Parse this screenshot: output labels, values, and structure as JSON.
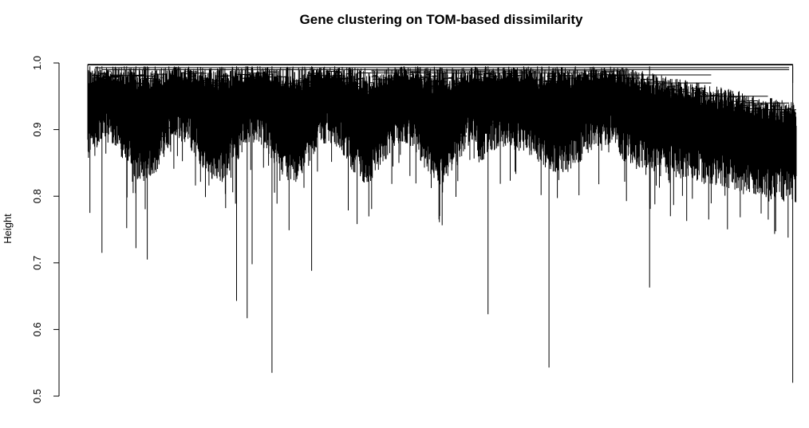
{
  "chart_data": {
    "type": "dendrogram",
    "title": "Gene clustering on TOM-based dissimilarity",
    "ylabel": "Height",
    "xlabel": "",
    "ylim": [
      0.5,
      1.0
    ],
    "yticks": [
      0.5,
      0.6,
      0.7,
      0.8,
      0.9,
      1.0
    ],
    "ytick_labels": [
      "0.5",
      "0.6",
      "0.7",
      "0.8",
      "0.9",
      "1.0"
    ],
    "top_merge_height": 0.998,
    "major_merge_heights": [
      0.998,
      0.99,
      0.985,
      0.97,
      0.95,
      0.94,
      0.93
    ],
    "leaf_count_approx": 2000,
    "deep_leaf_branches": [
      {
        "x_frac": 0.003,
        "height": 0.775
      },
      {
        "x_frac": 0.02,
        "height": 0.715
      },
      {
        "x_frac": 0.055,
        "height": 0.752
      },
      {
        "x_frac": 0.068,
        "height": 0.722
      },
      {
        "x_frac": 0.084,
        "height": 0.705
      },
      {
        "x_frac": 0.21,
        "height": 0.643
      },
      {
        "x_frac": 0.225,
        "height": 0.617
      },
      {
        "x_frac": 0.232,
        "height": 0.698
      },
      {
        "x_frac": 0.26,
        "height": 0.535
      },
      {
        "x_frac": 0.316,
        "height": 0.688
      },
      {
        "x_frac": 0.565,
        "height": 0.623
      },
      {
        "x_frac": 0.651,
        "height": 0.543
      },
      {
        "x_frac": 0.793,
        "height": 0.663
      },
      {
        "x_frac": 0.995,
        "height": 0.52
      }
    ],
    "color": "#000000"
  }
}
